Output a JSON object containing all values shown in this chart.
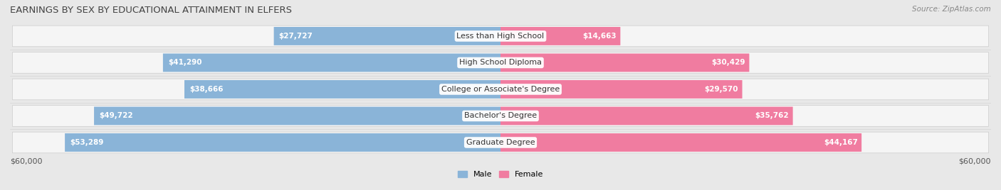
{
  "title": "EARNINGS BY SEX BY EDUCATIONAL ATTAINMENT IN ELFERS",
  "source": "Source: ZipAtlas.com",
  "categories": [
    "Less than High School",
    "High School Diploma",
    "College or Associate's Degree",
    "Bachelor's Degree",
    "Graduate Degree"
  ],
  "male_values": [
    27727,
    41290,
    38666,
    49722,
    53289
  ],
  "female_values": [
    14663,
    30429,
    29570,
    35762,
    44167
  ],
  "male_color": "#8ab4d8",
  "female_color": "#f07ca0",
  "max_value": 60000,
  "background_color": "#e8e8e8",
  "row_bg_color": "#f5f5f5",
  "title_fontsize": 9.5,
  "source_fontsize": 7.5,
  "label_fontsize": 8,
  "value_fontsize": 7.5,
  "axis_label": "$60,000",
  "legend_male": "Male",
  "legend_female": "Female"
}
